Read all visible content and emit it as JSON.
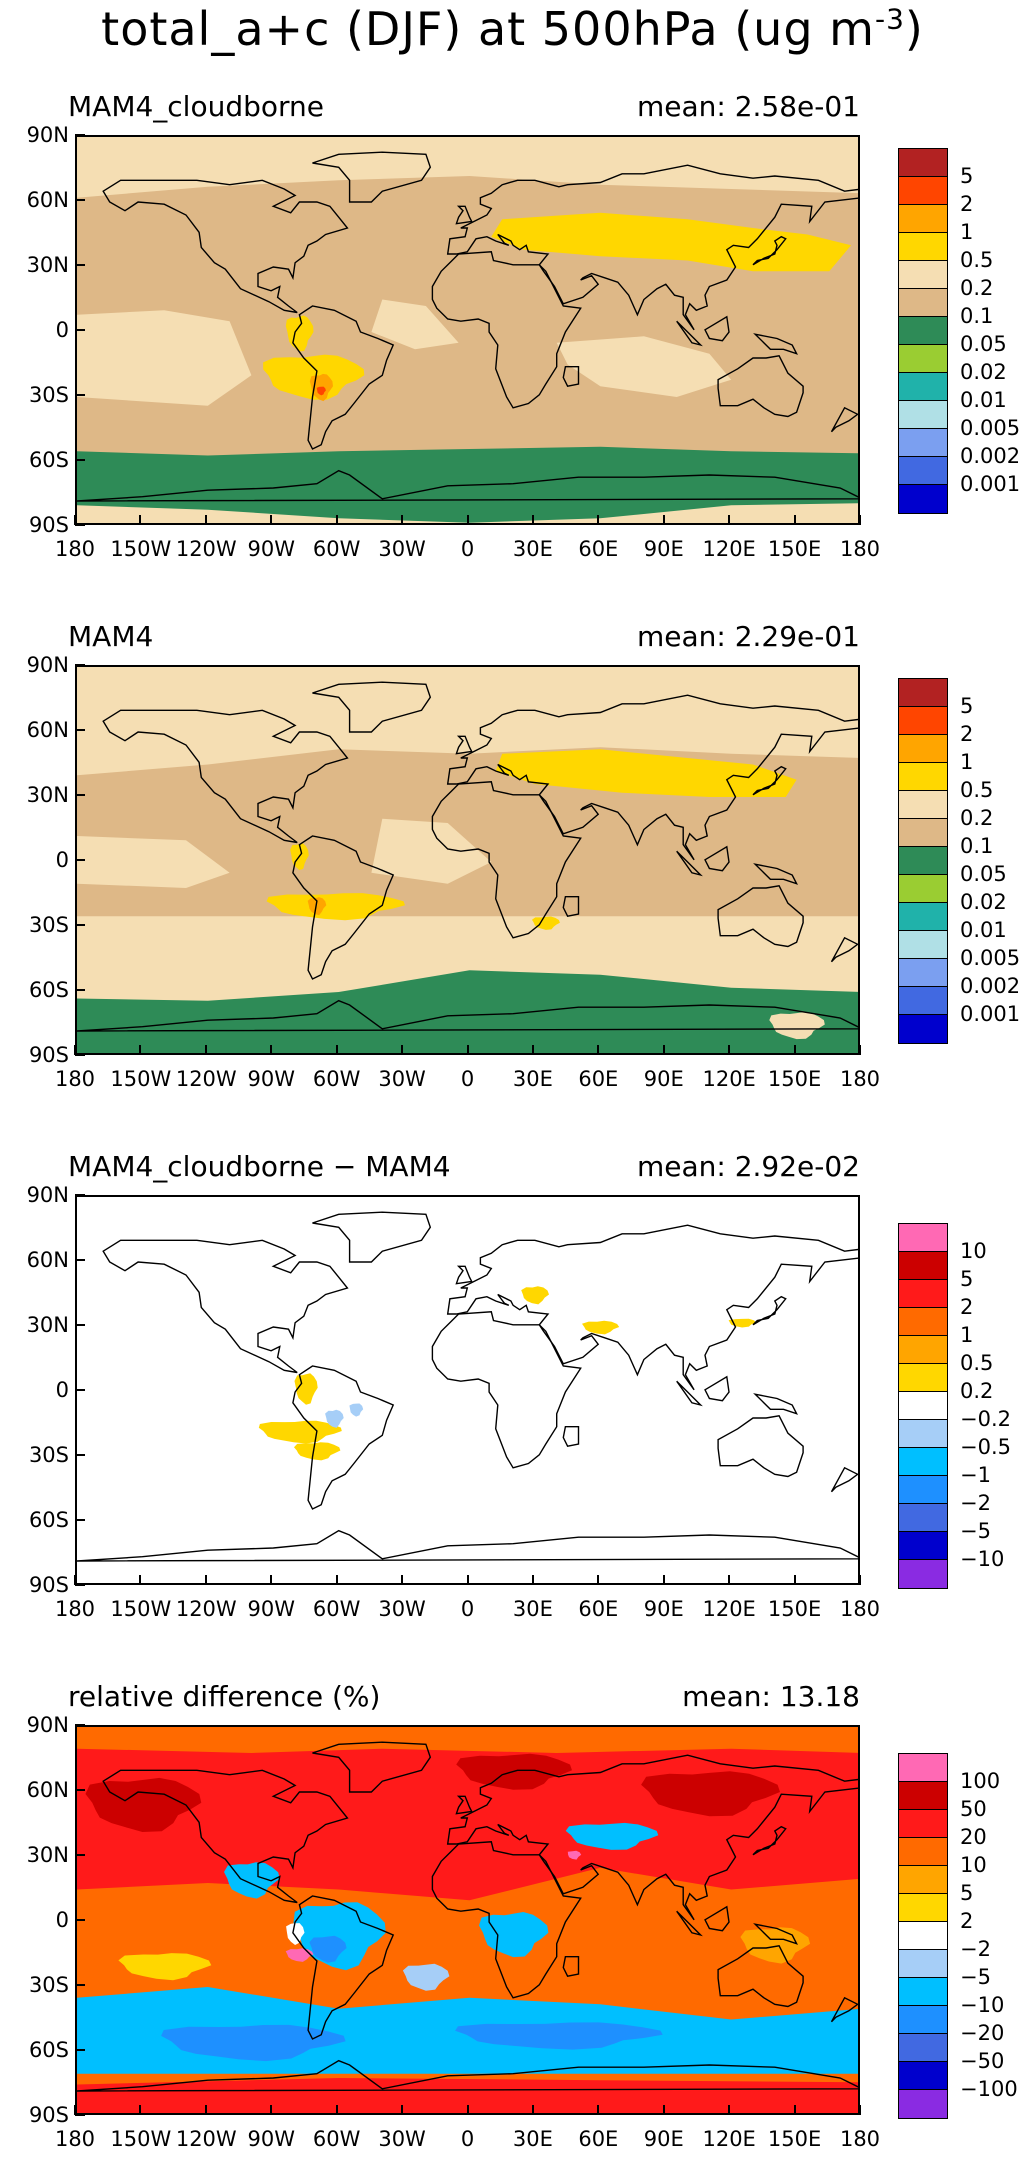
{
  "figure": {
    "title_main": "total_a+c (DJF) at 500hPa (ug m",
    "title_sup": "-3",
    "title_close": ")"
  },
  "x_ticks": [
    "180",
    "150W",
    "120W",
    "90W",
    "60W",
    "30W",
    "0",
    "30E",
    "60E",
    "90E",
    "120E",
    "150E",
    "180"
  ],
  "y_ticks": [
    "90N",
    "60N",
    "30N",
    "0",
    "30S",
    "60S",
    "90S"
  ],
  "colors": {
    "conc_scale": [
      "#b22222",
      "#ff4500",
      "#ffa500",
      "#ffd700",
      "#f5deb3",
      "#deb887",
      "#2e8b57",
      "#9acd32",
      "#20b2aa",
      "#b0e0e6",
      "#7b9ff0",
      "#4169e1",
      "#0000cd"
    ],
    "diff_scale": [
      "#ff69b4",
      "#cc0000",
      "#ff1a1a",
      "#ff6a00",
      "#ffa500",
      "#ffd700",
      "#ffffff",
      "#a6cef7",
      "#00bfff",
      "#1e90ff",
      "#4169e1",
      "#0000cd",
      "#8a2be2"
    ]
  },
  "chart_data": [
    {
      "type": "heatmap",
      "title": "MAM4_cloudborne",
      "mean_label": "mean: 2.58e-01",
      "legend_levels": [
        "5",
        "2",
        "1",
        "0.5",
        "0.2",
        "0.1",
        "0.05",
        "0.02",
        "0.01",
        "0.005",
        "0.002",
        "0.001"
      ],
      "xlim": [
        -180,
        180
      ],
      "ylim": [
        -90,
        90
      ]
    },
    {
      "type": "heatmap",
      "title": "MAM4",
      "mean_label": "mean: 2.29e-01",
      "legend_levels": [
        "5",
        "2",
        "1",
        "0.5",
        "0.2",
        "0.1",
        "0.05",
        "0.02",
        "0.01",
        "0.005",
        "0.002",
        "0.001"
      ],
      "xlim": [
        -180,
        180
      ],
      "ylim": [
        -90,
        90
      ]
    },
    {
      "type": "heatmap",
      "title": "MAM4_cloudborne − MAM4",
      "mean_label": "mean: 2.92e-02",
      "legend_levels": [
        "10",
        "5",
        "2",
        "1",
        "0.5",
        "0.2",
        "−0.2",
        "−0.5",
        "−1",
        "−2",
        "−5",
        "−10"
      ],
      "xlim": [
        -180,
        180
      ],
      "ylim": [
        -90,
        90
      ]
    },
    {
      "type": "heatmap",
      "title": "relative difference (%)",
      "mean_label": "mean: 13.18",
      "legend_levels": [
        "100",
        "50",
        "20",
        "10",
        "5",
        "2",
        "−2",
        "−5",
        "−10",
        "−20",
        "−50",
        "−100"
      ],
      "xlim": [
        -180,
        180
      ],
      "ylim": [
        -90,
        90
      ]
    }
  ]
}
